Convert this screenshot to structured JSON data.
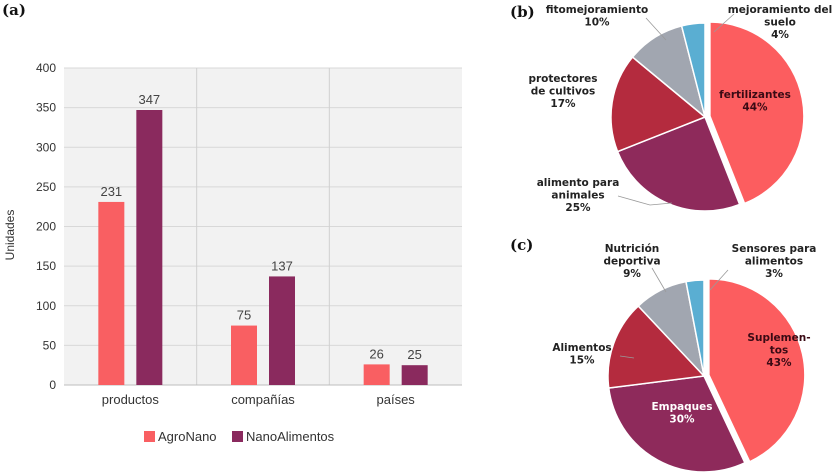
{
  "chart_data": [
    {
      "panel": "(a)",
      "type": "bar",
      "title": "",
      "xlabel": "",
      "ylabel": "Unidades",
      "ylim": [
        0,
        400
      ],
      "yticks": [
        "0",
        "50",
        "100",
        "150",
        "200",
        "250",
        "300",
        "350",
        "400"
      ],
      "categories": [
        "productos",
        "compañías",
        "países"
      ],
      "series": [
        {
          "name": "AgroNano",
          "color": "#f95f62",
          "values": [
            231,
            75,
            26
          ]
        },
        {
          "name": "NanoAlimentos",
          "color": "#8a2a5e",
          "values": [
            347,
            137,
            25
          ]
        }
      ],
      "legend": "bottom"
    },
    {
      "panel": "(b)",
      "type": "pie",
      "slices": [
        {
          "label_lines": [
            "fertilizantes"
          ],
          "pct_text": "44%",
          "value": 44,
          "color": "#fc5d5f"
        },
        {
          "label_lines": [
            "alimento para",
            "animales"
          ],
          "pct_text": "25%",
          "value": 25,
          "color": "#8e2a5b"
        },
        {
          "label_lines": [
            "protectores",
            "de cultivos"
          ],
          "pct_text": "17%",
          "value": 17,
          "color": "#b42b3e"
        },
        {
          "label_lines": [
            "fitomejoramiento"
          ],
          "pct_text": "10%",
          "value": 10,
          "color": "#a1a6b0"
        },
        {
          "label_lines": [
            "mejoramiento del",
            "suelo"
          ],
          "pct_text": "4%",
          "value": 4,
          "color": "#5aaed2"
        }
      ]
    },
    {
      "panel": "(c)",
      "type": "pie",
      "slices": [
        {
          "label_lines": [
            "Suplemen-",
            "tos"
          ],
          "pct_text": "43%",
          "value": 43,
          "color": "#fc5d5f"
        },
        {
          "label_lines": [
            "Empaques"
          ],
          "pct_text": "30%",
          "value": 30,
          "color": "#8e2a5b"
        },
        {
          "label_lines": [
            "Alimentos"
          ],
          "pct_text": "15%",
          "value": 15,
          "color": "#b42b3e"
        },
        {
          "label_lines": [
            "Nutrición",
            "deportiva"
          ],
          "pct_text": "9%",
          "value": 9,
          "color": "#a1a6b0"
        },
        {
          "label_lines": [
            "Sensores para",
            "alimentos"
          ],
          "pct_text": "3%",
          "value": 3,
          "color": "#5aaed2"
        }
      ]
    }
  ]
}
